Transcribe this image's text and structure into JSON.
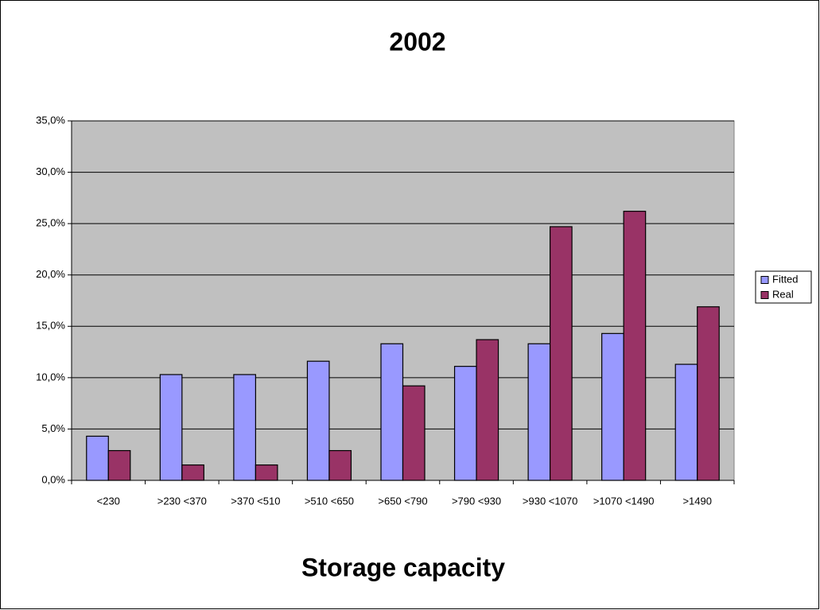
{
  "chart_data": {
    "type": "bar",
    "title": "2002",
    "x_label": "Storage capacity",
    "categories": [
      "<230",
      ">230 <370",
      ">370 <510",
      ">510 <650",
      ">650 <790",
      ">790 <930",
      ">930 <1070",
      ">1070 <1490",
      ">1490"
    ],
    "series": [
      {
        "name": "Fitted",
        "color": "#9999ff",
        "values": [
          4.3,
          10.3,
          10.3,
          11.6,
          13.3,
          11.1,
          13.3,
          14.3,
          11.3
        ]
      },
      {
        "name": "Real",
        "color": "#993366",
        "values": [
          2.9,
          1.5,
          1.5,
          2.9,
          9.2,
          13.7,
          24.7,
          26.2,
          16.9
        ]
      }
    ],
    "ylim": [
      0,
      35
    ],
    "yticks": [
      {
        "value": 0,
        "label": "0,0%"
      },
      {
        "value": 5,
        "label": "5,0%"
      },
      {
        "value": 10,
        "label": "10,0%"
      },
      {
        "value": 15,
        "label": "15,0%"
      },
      {
        "value": 20,
        "label": "20,0%"
      },
      {
        "value": 25,
        "label": "25,0%"
      },
      {
        "value": 30,
        "label": "30,0%"
      },
      {
        "value": 35,
        "label": "35,0%"
      }
    ],
    "grid": true,
    "legend": "right"
  }
}
